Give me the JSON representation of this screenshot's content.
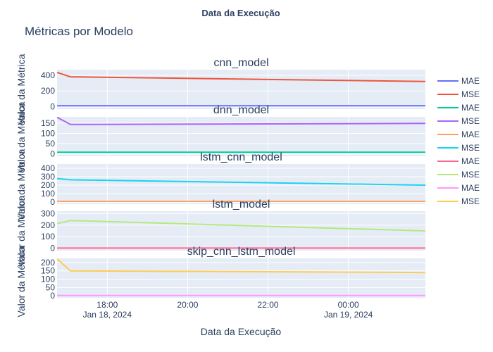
{
  "header_text": "Data da Execução",
  "chart_data": {
    "type": "line",
    "title": "Métricas por Modelo",
    "xlabel": "Data da Execução",
    "ylabel": "Valor da Métrica",
    "x_ticks": [
      {
        "time": "2024-01-17T18:00",
        "label": "18:00",
        "sublabel": "Jan 18, 2024"
      },
      {
        "time": "2024-01-17T20:00",
        "label": "20:00",
        "sublabel": ""
      },
      {
        "time": "2024-01-17T22:00",
        "label": "22:00",
        "sublabel": ""
      },
      {
        "time": "2024-01-18T00:00",
        "label": "00:00",
        "sublabel": "Jan 19, 2024"
      }
    ],
    "xlim": [
      "2024-01-17T16:45",
      "2024-01-18T01:55"
    ],
    "grid": true,
    "legend_position": "right",
    "panels": [
      {
        "title": "cnn_model",
        "ylim": [
          -30,
          470
        ],
        "yticks": [
          0,
          200,
          400
        ],
        "series": [
          {
            "name": "MAE",
            "color": "#636efa",
            "x": [
              "2024-01-17T16:45",
              "2024-01-17T17:05",
              "2024-01-18T01:55"
            ],
            "y": [
              12,
              12,
              12
            ]
          },
          {
            "name": "MSE",
            "color": "#ef553b",
            "x": [
              "2024-01-17T16:45",
              "2024-01-17T17:05",
              "2024-01-18T01:55"
            ],
            "y": [
              435,
              380,
              320
            ]
          }
        ]
      },
      {
        "title": "dnn_model",
        "ylim": [
          -12,
          180
        ],
        "yticks": [
          0,
          50,
          100,
          150
        ],
        "series": [
          {
            "name": "MAE",
            "color": "#00cc96",
            "x": [
              "2024-01-17T16:45",
              "2024-01-17T17:05",
              "2024-01-18T01:55"
            ],
            "y": [
              8,
              8,
              8
            ]
          },
          {
            "name": "MSE",
            "color": "#ab63fa",
            "x": [
              "2024-01-17T16:45",
              "2024-01-17T17:05",
              "2024-01-18T01:55"
            ],
            "y": [
              178,
              143,
              148
            ]
          }
        ]
      },
      {
        "title": "lstm_cnn_model",
        "ylim": [
          -25,
          450
        ],
        "yticks": [
          0,
          100,
          200,
          300,
          400
        ],
        "series": [
          {
            "name": "MAE",
            "color": "#ffa15a",
            "x": [
              "2024-01-17T16:45",
              "2024-01-17T17:05",
              "2024-01-18T01:55"
            ],
            "y": [
              8,
              8,
              8
            ]
          },
          {
            "name": "MSE",
            "color": "#19d3f3",
            "x": [
              "2024-01-17T16:45",
              "2024-01-17T17:05",
              "2024-01-18T01:55"
            ],
            "y": [
              278,
              263,
              200
            ]
          }
        ]
      },
      {
        "title": "lstm_model",
        "ylim": [
          -20,
          320
        ],
        "yticks": [
          0,
          100,
          200,
          300
        ],
        "series": [
          {
            "name": "MAE",
            "color": "#ff6692",
            "x": [
              "2024-01-17T16:45",
              "2024-01-17T17:05",
              "2024-01-18T01:55"
            ],
            "y": [
              2,
              2,
              2
            ]
          },
          {
            "name": "MSE",
            "color": "#b6e880",
            "x": [
              "2024-01-17T16:45",
              "2024-01-17T17:05",
              "2024-01-18T01:55"
            ],
            "y": [
              212,
              240,
              150
            ]
          }
        ]
      },
      {
        "title": "skip_cnn_lstm_model",
        "ylim": [
          -12,
          225
        ],
        "yticks": [
          0,
          50,
          100,
          150,
          200
        ],
        "series": [
          {
            "name": "MAE",
            "color": "#ff97ff",
            "x": [
              "2024-01-17T16:45",
              "2024-01-17T17:05",
              "2024-01-18T01:55"
            ],
            "y": [
              2,
              2,
              2
            ]
          },
          {
            "name": "MSE",
            "color": "#fecb52",
            "x": [
              "2024-01-17T16:45",
              "2024-01-17T17:05",
              "2024-01-18T01:55"
            ],
            "y": [
              222,
              150,
              140
            ]
          }
        ]
      }
    ]
  }
}
